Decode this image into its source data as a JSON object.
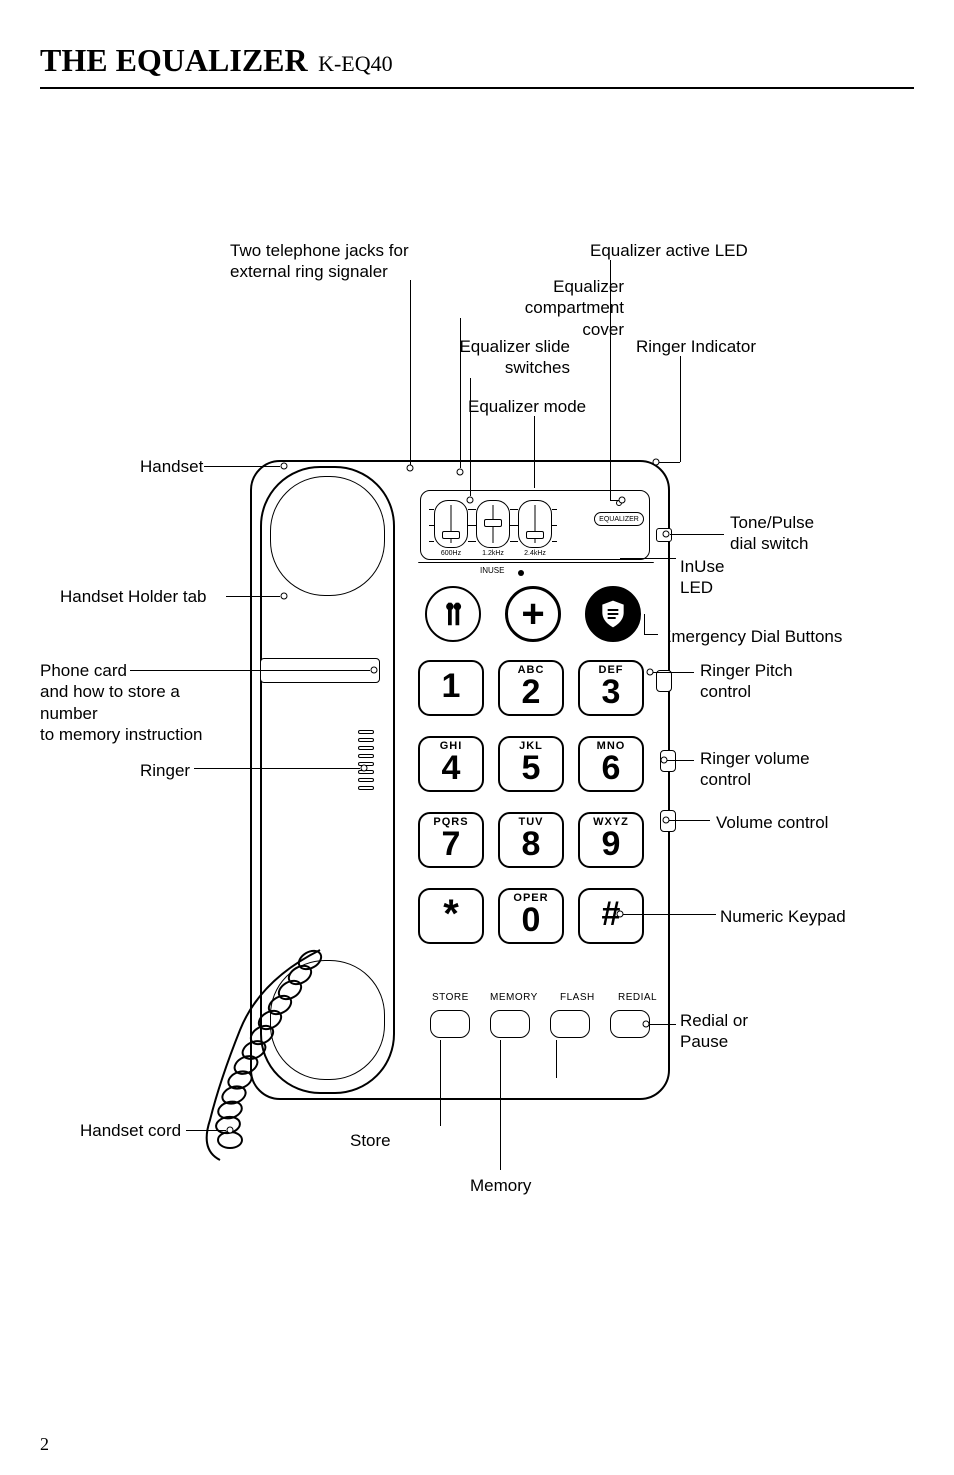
{
  "page": {
    "title_bold": "THE EQUALIZER",
    "title_model": "K-EQ40",
    "page_number": "2"
  },
  "colors": {
    "line": "#000000",
    "bg": "#ffffff"
  },
  "labels": {
    "two_jacks": "Two telephone jacks for\nexternal ring signaler",
    "eq_active_led": "Equalizer active LED",
    "eq_compartment": "Equalizer compartment\ncover",
    "eq_slide": "Equalizer slide\nswitches",
    "eq_mode": "Equalizer mode",
    "ringer_indicator": "Ringer Indicator",
    "handset": "Handset",
    "tone_pulse": "Tone/Pulse\ndial switch",
    "inuse_led": "InUse\nLED",
    "handset_holder": "Handset Holder tab",
    "emergency": "Emergency Dial Buttons",
    "phone_card": "Phone card\nand how to store a number\nto memory instruction",
    "ringer_pitch": "Ringer Pitch\ncontrol",
    "ringer": "Ringer",
    "ringer_volume": "Ringer volume\ncontrol",
    "volume": "Volume control",
    "numeric_keypad": "Numeric Keypad",
    "redial": "Redial or\nPause",
    "flash": "Flash",
    "handset_cord": "Handset cord",
    "store": "Store",
    "memory": "Memory"
  },
  "keypad": {
    "keys": [
      {
        "num": "1",
        "sup": ""
      },
      {
        "num": "2",
        "sup": "ABC"
      },
      {
        "num": "3",
        "sup": "DEF"
      },
      {
        "num": "4",
        "sup": "GHI"
      },
      {
        "num": "5",
        "sup": "JKL"
      },
      {
        "num": "6",
        "sup": "MNO"
      },
      {
        "num": "7",
        "sup": "PQRS"
      },
      {
        "num": "8",
        "sup": "TUV"
      },
      {
        "num": "9",
        "sup": "WXYZ"
      },
      {
        "num": "*",
        "sup": ""
      },
      {
        "num": "0",
        "sup": "OPER"
      },
      {
        "num": "#",
        "sup": ""
      }
    ]
  },
  "func_buttons": [
    "STORE",
    "MEMORY",
    "FLASH",
    "REDIAL"
  ],
  "eq": {
    "freqs": [
      "600Hz",
      "1.2kHz",
      "2.4kHz"
    ],
    "pill": "EQUALIZER",
    "inuse": "INUSE"
  },
  "icons": {
    "fire": "fire-icon",
    "plus": "+",
    "police": "police-icon"
  }
}
